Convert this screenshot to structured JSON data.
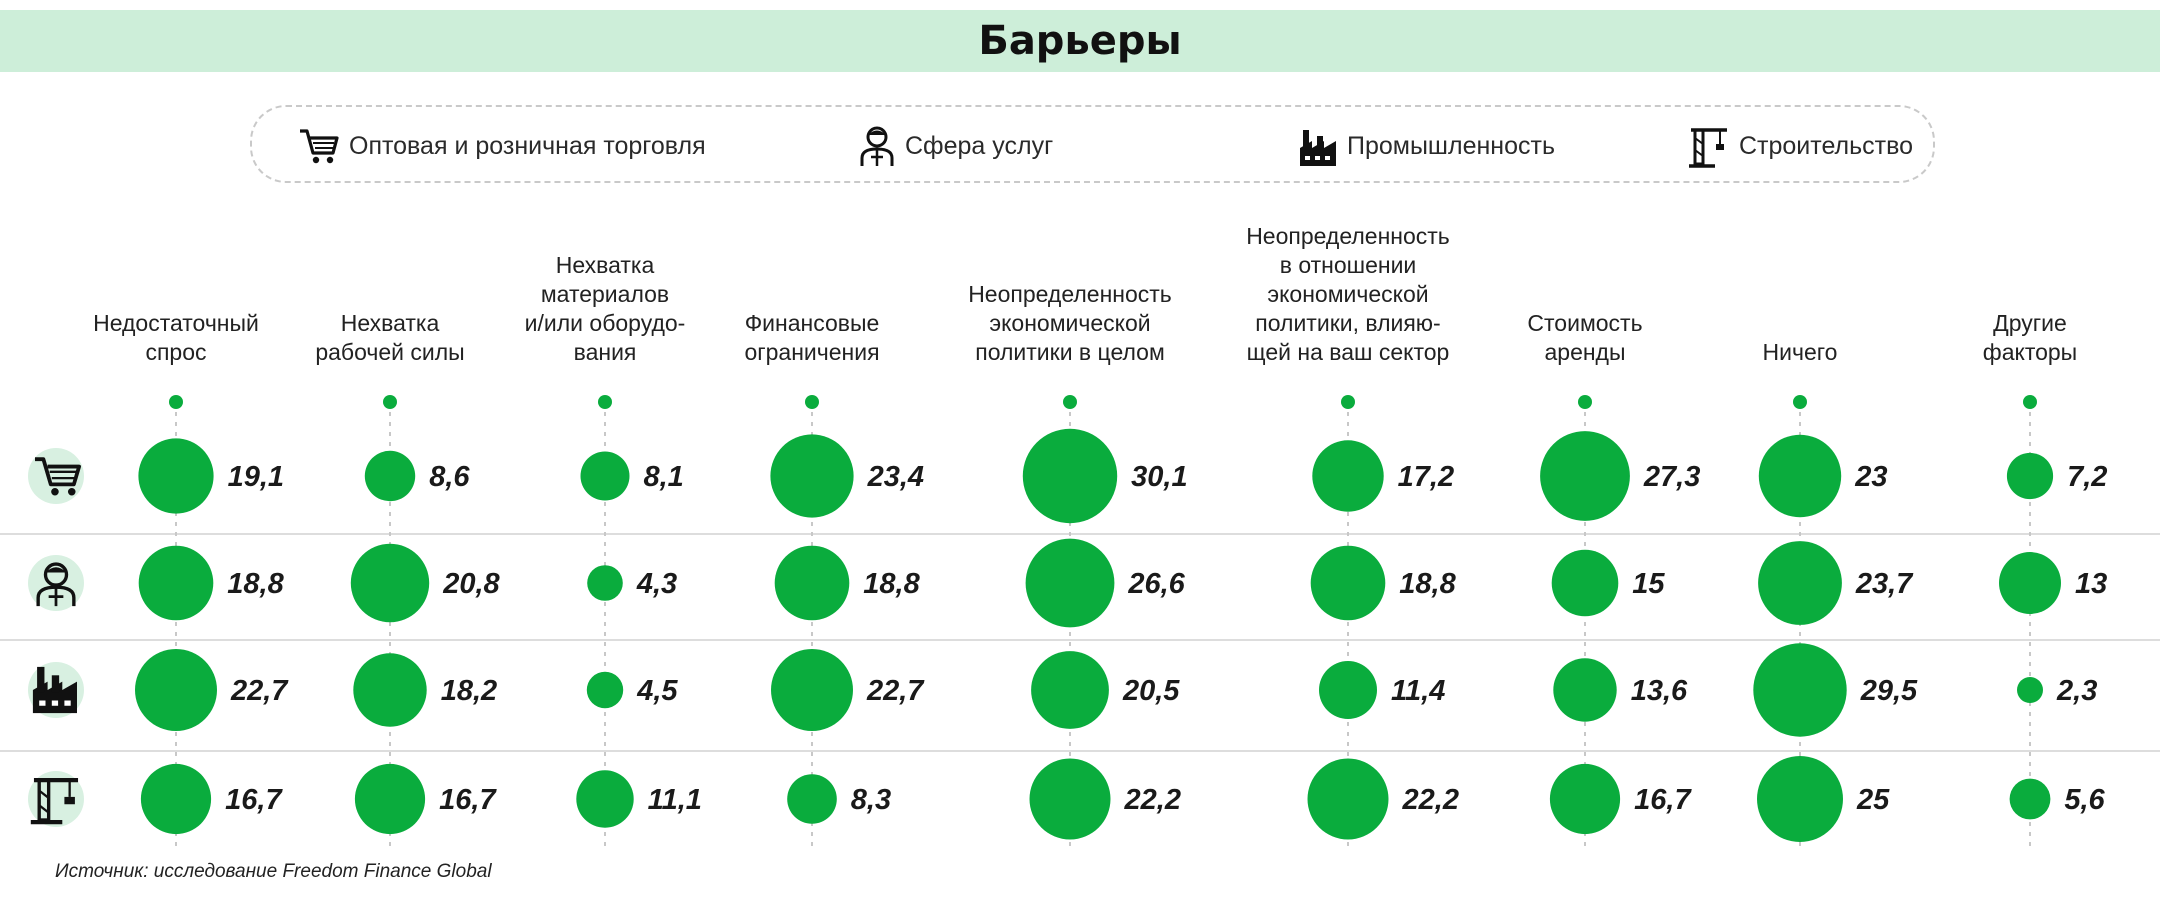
{
  "title": "Барьеры",
  "legend": [
    {
      "label": "Оптовая и розничная торговля",
      "icon": "shopping-cart-icon"
    },
    {
      "label": "Сфера услуг",
      "icon": "service-worker-icon"
    },
    {
      "label": "Промышленность",
      "icon": "factory-icon"
    },
    {
      "label": "Строительство",
      "icon": "crane-icon"
    }
  ],
  "colors": {
    "accent": "#0aac3d",
    "title_band": "#cdeed9",
    "icon_badge": "#d8f0e1",
    "divider": "#dddddd"
  },
  "chart_data": {
    "type": "bubble-matrix",
    "title": "Барьеры",
    "categories": [
      [
        "Недостаточный",
        "спрос"
      ],
      [
        "Нехватка",
        "рабочей силы"
      ],
      [
        "Нехватка",
        "материалов",
        "и/или оборудо-",
        "вания"
      ],
      [
        "Финансовые",
        "ограничения"
      ],
      [
        "Неопределенность",
        "экономической",
        "политики в целом"
      ],
      [
        "Неопределенность",
        "в отношении",
        "экономической",
        "политики, влияю-",
        "щей на ваш сектор"
      ],
      [
        "Стоимость",
        "аренды"
      ],
      [
        "Ничего"
      ],
      [
        "Другие",
        "факторы"
      ]
    ],
    "series": [
      {
        "name": "Оптовая и розничная торговля",
        "icon": "shopping-cart-icon",
        "values": [
          19.1,
          8.6,
          8.1,
          23.4,
          30.1,
          17.2,
          27.3,
          23,
          7.2
        ],
        "labels": [
          "19,1",
          "8,6",
          "8,1",
          "23,4",
          "30,1",
          "17,2",
          "27,3",
          "23",
          "7,2"
        ]
      },
      {
        "name": "Сфера услуг",
        "icon": "service-worker-icon",
        "values": [
          18.8,
          20.8,
          4.3,
          18.8,
          26.6,
          18.8,
          15,
          23.7,
          13
        ],
        "labels": [
          "18,8",
          "20,8",
          "4,3",
          "18,8",
          "26,6",
          "18,8",
          "15",
          "23,7",
          "13"
        ]
      },
      {
        "name": "Промышленность",
        "icon": "factory-icon",
        "values": [
          22.7,
          18.2,
          4.5,
          22.7,
          20.5,
          11.4,
          13.6,
          29.5,
          2.3
        ],
        "labels": [
          "22,7",
          "18,2",
          "4,5",
          "22,7",
          "20,5",
          "11,4",
          "13,6",
          "29,5",
          "2,3"
        ]
      },
      {
        "name": "Строительство",
        "icon": "crane-icon",
        "values": [
          16.7,
          16.7,
          11.1,
          8.3,
          22.2,
          22.2,
          16.7,
          25,
          5.6
        ],
        "labels": [
          "16,7",
          "16,7",
          "11,1",
          "8,3",
          "22,2",
          "22,2",
          "16,7",
          "25",
          "5,6"
        ]
      }
    ]
  },
  "source": "Источник: исследование Freedom Finance Global"
}
